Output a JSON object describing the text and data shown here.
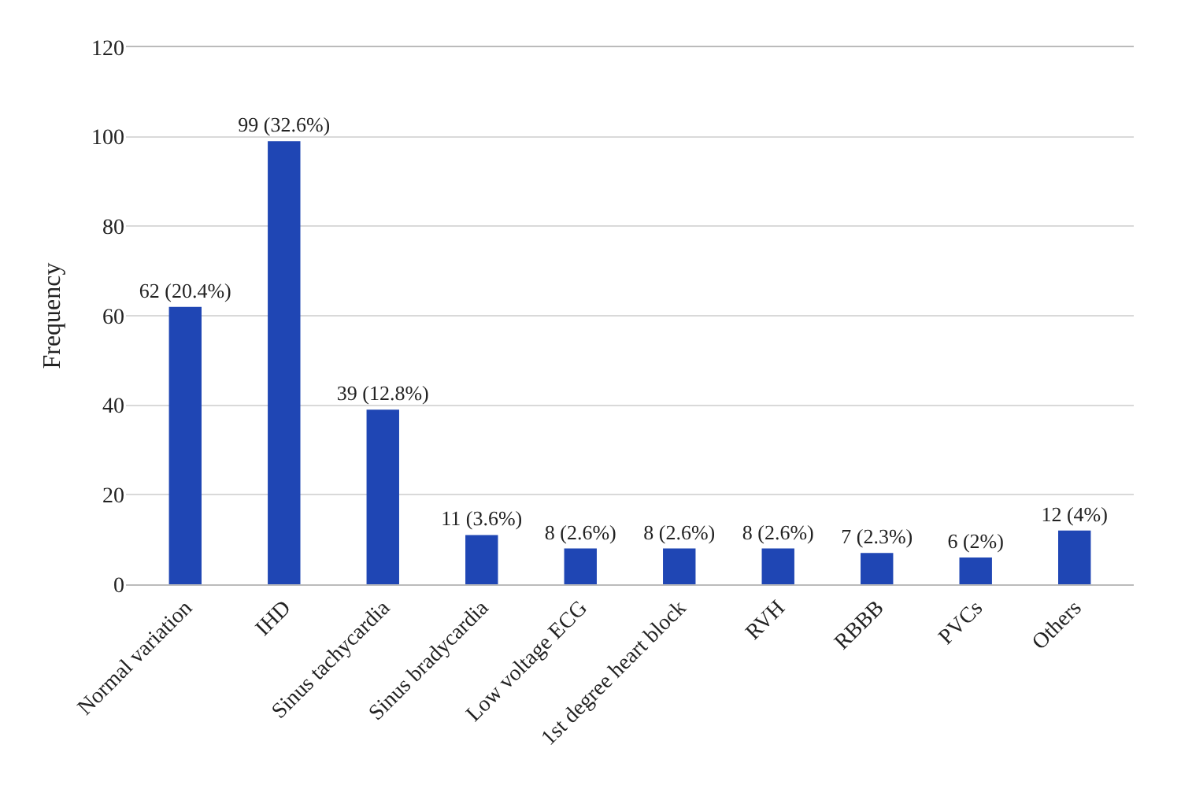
{
  "chart_data": {
    "type": "bar",
    "ylabel": "Frequency",
    "categories": [
      "Normal variation",
      "IHD",
      "Sinus tachycardia",
      "Sinus bradycardia",
      "Low voltage ECG",
      "1st degree heart block",
      "RVH",
      "RBBB",
      "PVCs",
      "Others"
    ],
    "values": [
      62,
      99,
      39,
      11,
      8,
      8,
      8,
      7,
      6,
      12
    ],
    "value_labels": [
      "62 (20.4%)",
      "99 (32.6%)",
      "39 (12.8%)",
      "11 (3.6%)",
      "8 (2.6%)",
      "8 (2.6%)",
      "8 (2.6%)",
      "7 (2.3%)",
      "6 (2%)",
      "12 (4%)"
    ],
    "color": "#1f46b4",
    "ylim": [
      0,
      120
    ],
    "yticks": [
      0,
      20,
      40,
      60,
      80,
      100,
      120
    ],
    "grid": "y"
  }
}
